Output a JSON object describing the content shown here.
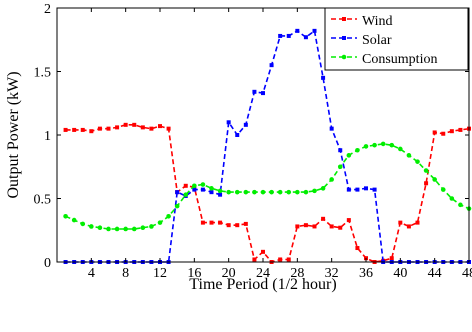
{
  "chart_data": {
    "type": "line",
    "xlabel": "Time Period (1/2 hour)",
    "ylabel": "Output Power (kW)",
    "xlim": [
      0,
      48
    ],
    "ylim": [
      0,
      2
    ],
    "xticks": [
      4,
      8,
      12,
      16,
      20,
      24,
      28,
      32,
      36,
      40,
      44,
      48
    ],
    "yticks": [
      0,
      0.5,
      1,
      1.5,
      2
    ],
    "ytick_labels": [
      "0",
      "0.5",
      "1",
      "1.5",
      "2"
    ],
    "grid": false,
    "legend_position": "top-right",
    "x": [
      1,
      2,
      3,
      4,
      5,
      6,
      7,
      8,
      9,
      10,
      11,
      12,
      13,
      14,
      15,
      16,
      17,
      18,
      19,
      20,
      21,
      22,
      23,
      24,
      25,
      26,
      27,
      28,
      29,
      30,
      31,
      32,
      33,
      34,
      35,
      36,
      37,
      38,
      39,
      40,
      41,
      42,
      43,
      44,
      45,
      46,
      47,
      48
    ],
    "series": [
      {
        "name": "Wind",
        "color": "#ff0000",
        "marker": "square",
        "linestyle": "dashed",
        "values": [
          1.04,
          1.04,
          1.04,
          1.03,
          1.05,
          1.05,
          1.06,
          1.08,
          1.08,
          1.06,
          1.05,
          1.07,
          1.05,
          0.55,
          0.6,
          0.59,
          0.31,
          0.31,
          0.31,
          0.29,
          0.29,
          0.3,
          0.02,
          0.08,
          0.0,
          0.02,
          0.02,
          0.28,
          0.29,
          0.28,
          0.34,
          0.28,
          0.27,
          0.33,
          0.11,
          0.03,
          0.0,
          0.01,
          0.03,
          0.31,
          0.28,
          0.31,
          0.62,
          1.02,
          1.01,
          1.03,
          1.04,
          1.05
        ]
      },
      {
        "name": "Solar",
        "color": "#0000ff",
        "marker": "square",
        "linestyle": "dashed",
        "values": [
          0.0,
          0.0,
          0.0,
          0.0,
          0.0,
          0.0,
          0.0,
          0.0,
          0.0,
          0.0,
          0.0,
          0.0,
          0.0,
          0.55,
          0.52,
          0.57,
          0.57,
          0.55,
          0.53,
          1.1,
          1.0,
          1.08,
          1.34,
          1.33,
          1.55,
          1.78,
          1.78,
          1.82,
          1.77,
          1.82,
          1.45,
          1.05,
          0.88,
          0.57,
          0.57,
          0.58,
          0.57,
          0.0,
          0.0,
          0.0,
          0.0,
          0.0,
          0.0,
          0.0,
          0.0,
          0.0,
          0.0,
          0.0
        ]
      },
      {
        "name": "Consumption",
        "color": "#00ee00",
        "marker": "circle",
        "linestyle": "dashed",
        "values": [
          0.36,
          0.33,
          0.3,
          0.28,
          0.27,
          0.26,
          0.26,
          0.26,
          0.26,
          0.27,
          0.28,
          0.31,
          0.36,
          0.44,
          0.53,
          0.6,
          0.61,
          0.58,
          0.56,
          0.55,
          0.55,
          0.55,
          0.55,
          0.55,
          0.55,
          0.55,
          0.55,
          0.55,
          0.55,
          0.56,
          0.58,
          0.65,
          0.75,
          0.84,
          0.88,
          0.91,
          0.92,
          0.93,
          0.92,
          0.89,
          0.84,
          0.79,
          0.72,
          0.65,
          0.57,
          0.5,
          0.45,
          0.42
        ]
      }
    ]
  }
}
